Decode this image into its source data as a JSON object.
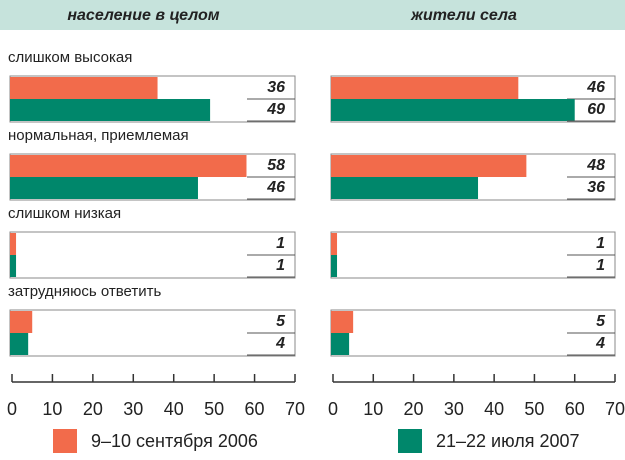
{
  "chart_data": {
    "type": "bar",
    "categories": [
      "слишком высокая",
      "нормальная, приемлемая",
      "слишком низкая",
      "затрудняюсь ответить"
    ],
    "series": [
      {
        "name": "9–10 сентября 2006",
        "color": "#f26b4b"
      },
      {
        "name": "21–22 июля 2007",
        "color": "#00876b"
      }
    ],
    "panels": [
      {
        "title": "население в целом",
        "series": [
          {
            "values": [
              36,
              58,
              1,
              5
            ]
          },
          {
            "values": [
              49,
              46,
              1,
              4
            ]
          }
        ]
      },
      {
        "title": "жители села",
        "series": [
          {
            "values": [
              46,
              48,
              1,
              5
            ]
          },
          {
            "values": [
              60,
              36,
              1,
              4
            ]
          }
        ]
      }
    ],
    "xlim": [
      0,
      70
    ],
    "xticks": [
      0,
      10,
      20,
      30,
      40,
      50,
      60,
      70
    ]
  }
}
